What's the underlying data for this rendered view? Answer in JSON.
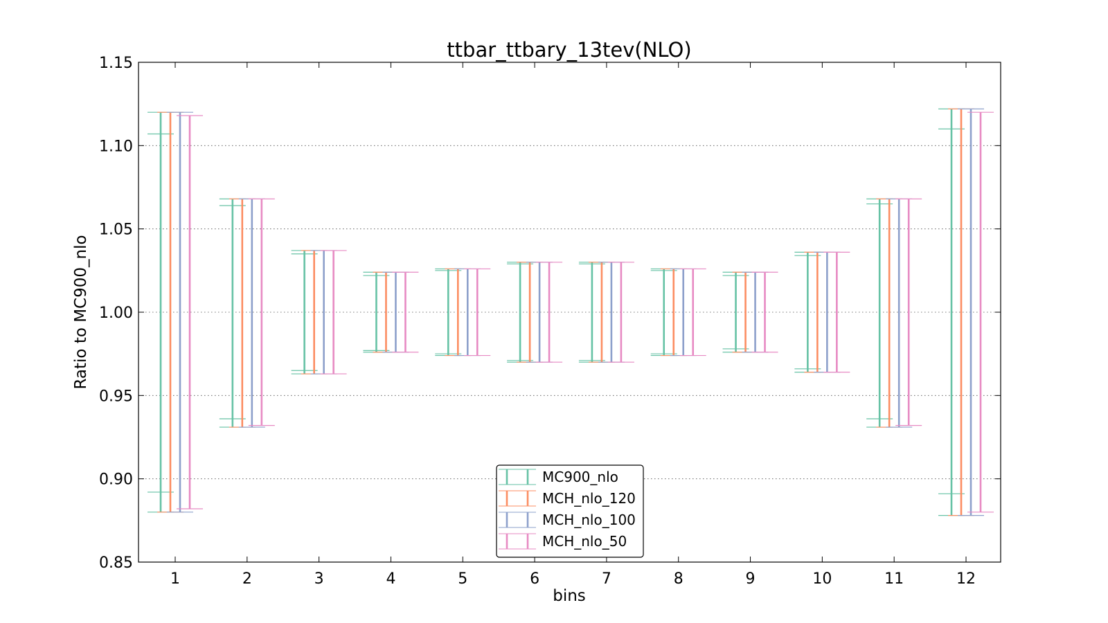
{
  "chart_data": {
    "type": "errorbar",
    "title": "ttbar_ttbary_13tev(NLO)",
    "xlabel": "bins",
    "ylabel": "Ratio to MC900_nlo",
    "ylim": [
      0.85,
      1.15
    ],
    "yticks": [
      "0.85",
      "0.90",
      "0.95",
      "1.00",
      "1.05",
      "1.10",
      "1.15"
    ],
    "categories": [
      "1",
      "2",
      "3",
      "4",
      "5",
      "6",
      "7",
      "8",
      "9",
      "10",
      "11",
      "12"
    ],
    "grid": "y-dotted",
    "legend_position": "bottom-center",
    "series": [
      {
        "name": "MC900_nlo",
        "color": "#66c2a5",
        "upper": [
          1.12,
          1.068,
          1.037,
          1.024,
          1.026,
          1.03,
          1.03,
          1.026,
          1.024,
          1.036,
          1.068,
          1.122
        ],
        "lower": [
          0.88,
          0.931,
          0.963,
          0.976,
          0.974,
          0.97,
          0.97,
          0.974,
          0.976,
          0.964,
          0.931,
          0.878
        ],
        "inner_upper": [
          1.107,
          1.064,
          1.035,
          1.022,
          1.025,
          1.029,
          1.029,
          1.025,
          1.022,
          1.034,
          1.065,
          1.11
        ],
        "inner_lower": [
          0.892,
          0.936,
          0.965,
          0.977,
          0.975,
          0.971,
          0.971,
          0.975,
          0.978,
          0.966,
          0.936,
          0.891
        ]
      },
      {
        "name": "MCH_nlo_120",
        "color": "#fc8d62",
        "upper": [
          1.12,
          1.068,
          1.037,
          1.024,
          1.026,
          1.03,
          1.03,
          1.026,
          1.024,
          1.036,
          1.068,
          1.122
        ],
        "lower": [
          0.88,
          0.931,
          0.963,
          0.976,
          0.974,
          0.97,
          0.97,
          0.974,
          0.976,
          0.964,
          0.931,
          0.878
        ]
      },
      {
        "name": "MCH_nlo_100",
        "color": "#8da0cb",
        "upper": [
          1.12,
          1.068,
          1.037,
          1.024,
          1.026,
          1.03,
          1.03,
          1.026,
          1.024,
          1.036,
          1.068,
          1.122
        ],
        "lower": [
          0.88,
          0.931,
          0.963,
          0.976,
          0.974,
          0.97,
          0.97,
          0.974,
          0.976,
          0.964,
          0.931,
          0.878
        ]
      },
      {
        "name": "MCH_nlo_50",
        "color": "#e78ac3",
        "upper": [
          1.118,
          1.068,
          1.037,
          1.024,
          1.026,
          1.03,
          1.03,
          1.026,
          1.024,
          1.036,
          1.068,
          1.12
        ],
        "lower": [
          0.882,
          0.932,
          0.963,
          0.976,
          0.974,
          0.97,
          0.97,
          0.974,
          0.976,
          0.964,
          0.932,
          0.88
        ]
      }
    ]
  }
}
